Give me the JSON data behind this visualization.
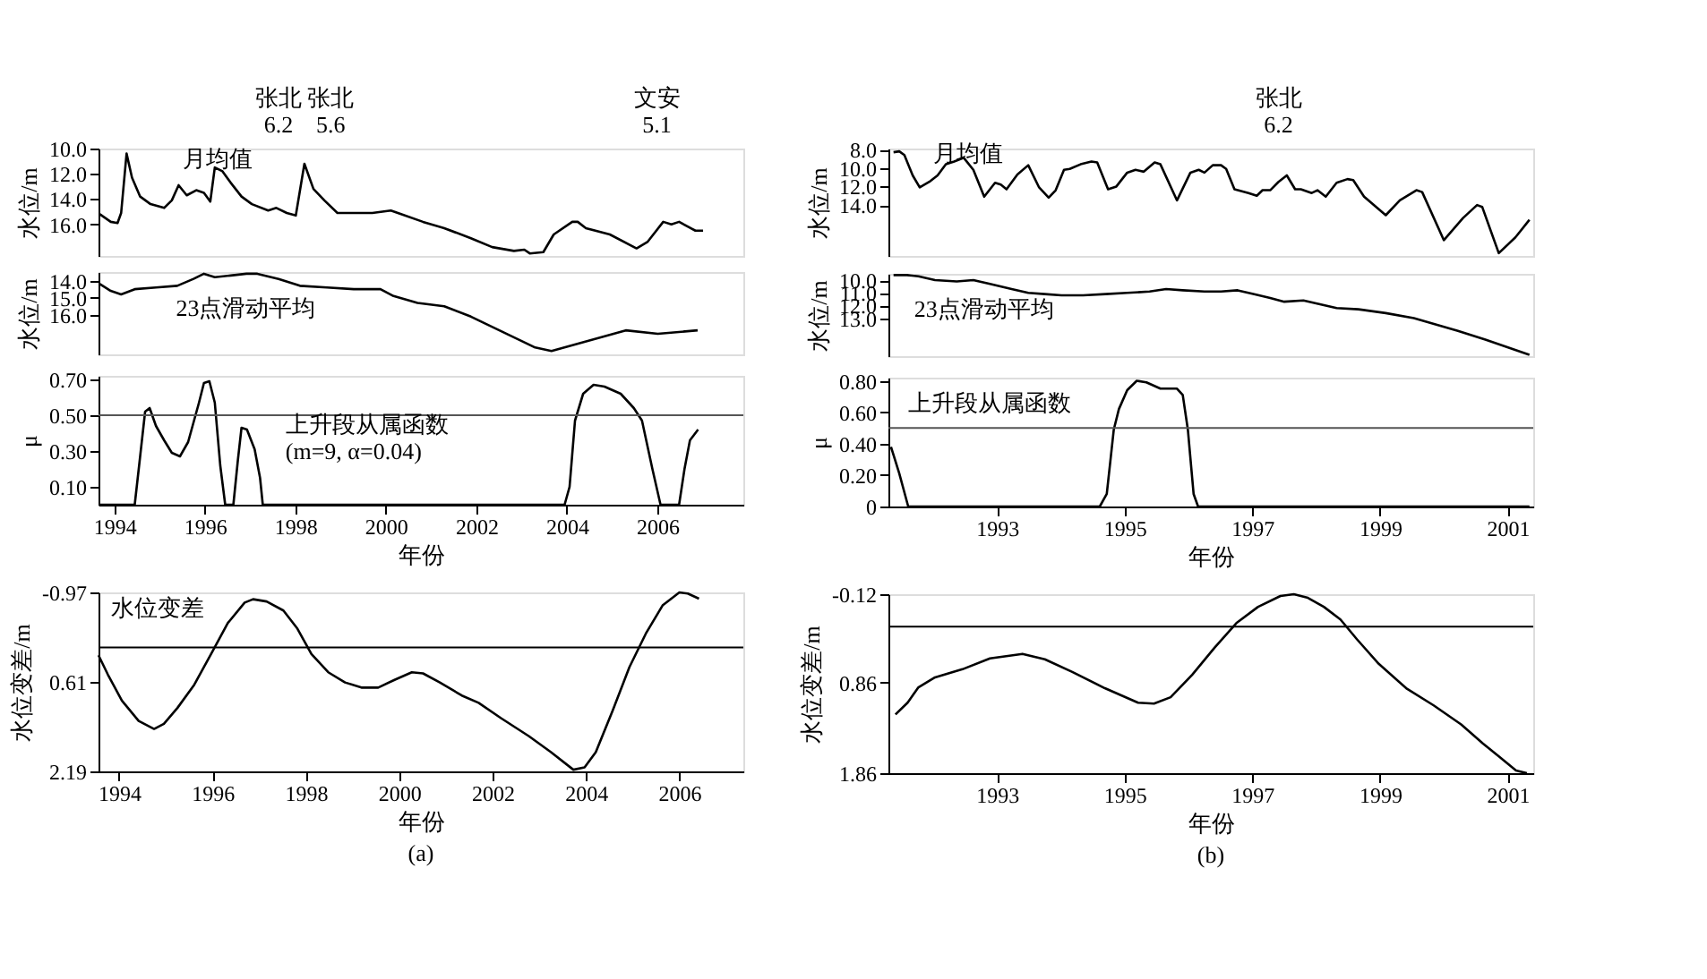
{
  "chart_data": [
    {
      "type": "line",
      "ylabel": "水位/m",
      "xlim": [
        1993.65,
        2007.9
      ],
      "ylim": [
        18.5,
        10
      ],
      "yticks": [
        {
          "value": 10,
          "label": "10.0"
        },
        {
          "value": 12,
          "label": "12.0"
        },
        {
          "value": 14,
          "label": "14.0"
        },
        {
          "value": 16,
          "label": "16.0"
        }
      ],
      "tick_labels": "y",
      "series": [
        {
          "color": "#000000",
          "x": [
            1993.68,
            1993.92,
            1994.07,
            1994.15,
            1994.27,
            1994.39,
            1994.57,
            1994.8,
            1995.1,
            1995.27,
            1995.42,
            1995.6,
            1995.81,
            1995.98,
            1996.12,
            1996.22,
            1996.39,
            1996.57,
            1996.81,
            1997.04,
            1997.4,
            1997.58,
            1997.81,
            1998.01,
            1998.2,
            1998.4,
            1998.64,
            1998.93,
            1999.17,
            1999.52,
            1999.7,
            2000.11,
            2000.35,
            2000.82,
            2001.29,
            2001.88,
            2002.35,
            2002.83,
            2003.06,
            2003.18,
            2003.48,
            2003.71,
            2004.12,
            2004.24,
            2004.42,
            2004.95,
            2005.54,
            2005.78,
            2006.13,
            2006.31,
            2006.48,
            2006.84,
            2007.01
          ],
          "values": [
            15.2,
            15.8,
            15.9,
            15.1,
            10.4,
            12.3,
            13.8,
            14.4,
            14.7,
            14.1,
            12.9,
            13.7,
            13.3,
            13.5,
            14.2,
            11.5,
            11.8,
            12.7,
            13.8,
            14.4,
            14.9,
            14.7,
            15.1,
            15.3,
            11.2,
            13.2,
            14.1,
            15.1,
            15.1,
            15.1,
            15.1,
            14.9,
            15.2,
            15.8,
            16.3,
            17.1,
            17.8,
            18.1,
            18.0,
            18.3,
            18.2,
            16.8,
            15.8,
            15.8,
            16.3,
            16.8,
            17.9,
            17.4,
            15.8,
            16.0,
            15.8,
            16.5,
            16.5
          ]
        }
      ],
      "annotations": [
        "月均值",
        "张北\n6.2",
        "张北\n5.6",
        "文安\n5.1"
      ]
    },
    {
      "type": "line",
      "ylabel": "水位/m",
      "xlim": [
        1993.65,
        2007.9
      ],
      "ylim": [
        18.3,
        13.5
      ],
      "yticks": [
        {
          "value": 14,
          "label": "14.0"
        },
        {
          "value": 15,
          "label": "15.0"
        },
        {
          "value": 16,
          "label": "16.0"
        }
      ],
      "tick_labels": "y",
      "series": [
        {
          "color": "#000000",
          "x": [
            1993.68,
            1993.92,
            1994.15,
            1994.45,
            1994.92,
            1995.39,
            1995.75,
            1995.98,
            1996.22,
            1996.57,
            1996.92,
            1997.16,
            1997.63,
            1998.1,
            1998.7,
            1999.29,
            1999.88,
            2000.17,
            2000.7,
            2001.29,
            2001.88,
            2002.59,
            2003.3,
            2003.66,
            2005.3,
            2006.01,
            2006.89
          ],
          "values": [
            14.2,
            14.6,
            14.8,
            14.5,
            14.4,
            14.3,
            13.9,
            13.6,
            13.8,
            13.7,
            13.6,
            13.6,
            13.9,
            14.3,
            14.4,
            14.5,
            14.5,
            14.9,
            15.3,
            15.5,
            16.1,
            17.0,
            17.9,
            18.1,
            16.9,
            17.1,
            16.9
          ]
        }
      ],
      "annotations": [
        "23点滑动平均"
      ]
    },
    {
      "type": "line",
      "ylabel": "μ",
      "xlabel": "年份",
      "xlim": [
        1993.65,
        2007.9
      ],
      "ylim": [
        0,
        0.72
      ],
      "xticks": [
        1994,
        1996,
        1998,
        2000,
        2002,
        2004,
        2006
      ],
      "yticks": [
        {
          "value": 0.1,
          "label": "0.10"
        },
        {
          "value": 0.3,
          "label": "0.30"
        },
        {
          "value": 0.5,
          "label": "0.50"
        },
        {
          "value": 0.7,
          "label": "0.70"
        }
      ],
      "series": [
        {
          "color": "#000000",
          "x": [
            1993.65,
            1994.45,
            1994.57,
            1994.68,
            1994.78,
            1994.92,
            1995.1,
            1995.27,
            1995.45,
            1995.63,
            1995.87,
            1995.98,
            1996.1,
            1996.22,
            1996.34,
            1996.45,
            1996.63,
            1996.73,
            1996.81,
            1996.93,
            1997.1,
            1997.22,
            1997.28,
            2003.95,
            2004.06,
            2004.18,
            2004.36,
            2004.59,
            2004.83,
            2005.19,
            2005.48,
            2005.66,
            2005.89,
            2006.07,
            2006.48,
            2006.6,
            2006.72,
            2006.9
          ],
          "values": [
            0,
            0,
            0.27,
            0.52,
            0.54,
            0.44,
            0.36,
            0.29,
            0.27,
            0.35,
            0.57,
            0.68,
            0.69,
            0.57,
            0.22,
            0,
            0,
            0.25,
            0.43,
            0.42,
            0.31,
            0.15,
            0,
            0,
            0.1,
            0.47,
            0.62,
            0.67,
            0.66,
            0.62,
            0.54,
            0.47,
            0.2,
            0,
            0,
            0.2,
            0.36,
            0.42
          ]
        }
      ],
      "ref_lines": [
        {
          "axis": "y",
          "value": 0.5,
          "color": "#555555"
        }
      ],
      "annotations": [
        "上升段从属函数\n(m=9, α=0.04)"
      ]
    },
    {
      "type": "line",
      "ylabel": "水位变差/m",
      "xlabel": "年份",
      "xlim": [
        1993.56,
        2007.37
      ],
      "ylim": [
        2.19,
        -0.97
      ],
      "xticks": [
        1994,
        1996,
        1998,
        2000,
        2002,
        2004,
        2006
      ],
      "yticks": [
        {
          "value": -0.97,
          "label": "-0.97"
        },
        {
          "value": 0.61,
          "label": "0.61"
        },
        {
          "value": 2.19,
          "label": "2.19"
        }
      ],
      "series": [
        {
          "color": "#000000",
          "x": [
            1993.56,
            1993.76,
            1994.06,
            1994.42,
            1994.75,
            1994.96,
            1995.25,
            1995.61,
            1995.97,
            1996.33,
            1996.69,
            1996.87,
            1997.16,
            1997.52,
            1997.82,
            1998.12,
            1998.48,
            1998.84,
            1999.19,
            1999.55,
            1999.91,
            2000.27,
            2000.51,
            2000.87,
            2001.34,
            2001.7,
            2002.18,
            2002.78,
            2003.25,
            2003.73,
            2003.97,
            2004.21,
            2004.57,
            2004.93,
            2005.28,
            2005.64,
            2006.0,
            2006.18,
            2006.42
          ],
          "values": [
            0.14,
            0.48,
            0.94,
            1.3,
            1.44,
            1.35,
            1.07,
            0.66,
            0.12,
            -0.43,
            -0.79,
            -0.85,
            -0.81,
            -0.65,
            -0.33,
            0.12,
            0.44,
            0.62,
            0.71,
            0.71,
            0.57,
            0.44,
            0.46,
            0.62,
            0.85,
            0.98,
            1.25,
            1.57,
            1.85,
            2.16,
            2.12,
            1.85,
            1.12,
            0.35,
            -0.24,
            -0.74,
            -0.97,
            -0.95,
            -0.86
          ]
        }
      ],
      "ref_lines": [
        {
          "axis": "y",
          "value": 0.0,
          "color": "#000000"
        }
      ],
      "annotations": [
        "水位变差",
        "(a)"
      ]
    },
    {
      "type": "line",
      "ylabel": "水位/m",
      "xlim": [
        1991.3,
        2001.4
      ],
      "ylim": [
        19.5,
        7.9
      ],
      "yticks": [
        {
          "value": 8,
          "label": "8.0"
        },
        {
          "value": 10,
          "label": "10.0"
        },
        {
          "value": 12,
          "label": "12.0"
        },
        {
          "value": 14,
          "label": "14.0"
        }
      ],
      "tick_labels": "y",
      "series": [
        {
          "color": "#000000",
          "x": [
            1991.38,
            1991.47,
            1991.55,
            1991.68,
            1991.79,
            1991.94,
            1992.07,
            1992.2,
            1992.33,
            1992.48,
            1992.63,
            1992.8,
            1992.97,
            1993.06,
            1993.15,
            1993.32,
            1993.49,
            1993.66,
            1993.81,
            1993.92,
            1994.05,
            1994.14,
            1994.31,
            1994.48,
            1994.57,
            1994.74,
            1994.87,
            1995.04,
            1995.17,
            1995.3,
            1995.47,
            1995.56,
            1995.82,
            1996.03,
            1996.16,
            1996.25,
            1996.38,
            1996.51,
            1996.59,
            1996.72,
            1996.94,
            1997.07,
            1997.16,
            1997.28,
            1997.41,
            1997.54,
            1997.67,
            1997.76,
            1997.93,
            1998.02,
            1998.15,
            1998.32,
            1998.49,
            1998.58,
            1998.75,
            1999.09,
            1999.31,
            1999.57,
            1999.66,
            2000.0,
            2000.3,
            2000.52,
            2000.6,
            2000.86,
            2001.12,
            2001.34
          ],
          "values": [
            8.3,
            8.2,
            8.6,
            10.8,
            12.1,
            11.5,
            10.8,
            9.6,
            9.3,
            8.9,
            10.2,
            13.1,
            11.6,
            11.8,
            12.3,
            10.7,
            9.7,
            12.1,
            13.2,
            12.4,
            10.2,
            10.1,
            9.6,
            9.3,
            9.4,
            12.3,
            12.0,
            10.5,
            10.2,
            10.4,
            9.4,
            9.6,
            13.5,
            10.5,
            10.2,
            10.5,
            9.7,
            9.7,
            10.1,
            12.3,
            12.7,
            13.0,
            12.4,
            12.4,
            11.5,
            10.8,
            12.3,
            12.3,
            12.7,
            12.4,
            13.1,
            11.6,
            11.2,
            11.3,
            13.1,
            15.1,
            13.5,
            12.4,
            12.6,
            17.8,
            15.4,
            14.0,
            14.2,
            19.2,
            17.5,
            15.6
          ]
        }
      ],
      "annotations": [
        "月均值",
        "张北\n6.2"
      ]
    },
    {
      "type": "line",
      "ylabel": "水位/m",
      "xlim": [
        1991.3,
        2001.4
      ],
      "ylim": [
        16,
        9.5
      ],
      "yticks": [
        {
          "value": 10,
          "label": "10.0"
        },
        {
          "value": 11,
          "label": "11.0"
        },
        {
          "value": 12,
          "label": "12.0"
        },
        {
          "value": 13,
          "label": "13.0"
        }
      ],
      "tick_labels": "y",
      "series": [
        {
          "color": "#000000",
          "x": [
            1991.38,
            1991.59,
            1991.77,
            1992.03,
            1992.37,
            1992.63,
            1992.89,
            1993.23,
            1993.49,
            1993.75,
            1994.01,
            1994.35,
            1994.7,
            1995.04,
            1995.39,
            1995.65,
            1995.91,
            1996.25,
            1996.51,
            1996.77,
            1997.03,
            1997.28,
            1997.5,
            1997.8,
            1998.06,
            1998.32,
            1998.66,
            1999.09,
            1999.53,
            2000.22,
            2000.65,
            2001.34
          ],
          "values": [
            9.6,
            9.6,
            9.7,
            10.0,
            10.1,
            10.0,
            10.3,
            10.7,
            11.0,
            11.1,
            11.2,
            11.2,
            11.1,
            11.0,
            10.9,
            10.7,
            10.8,
            10.9,
            10.9,
            10.8,
            11.1,
            11.4,
            11.7,
            11.6,
            11.9,
            12.2,
            12.3,
            12.6,
            13.0,
            14.0,
            14.7,
            15.9
          ]
        }
      ],
      "annotations": [
        "23点滑动平均"
      ]
    },
    {
      "type": "line",
      "ylabel": "μ",
      "xlabel": "年份",
      "xlim": [
        1991.3,
        2001.4
      ],
      "ylim": [
        0,
        0.82
      ],
      "xticks": [
        1993,
        1995,
        1997,
        1999,
        2001
      ],
      "yticks": [
        {
          "value": 0,
          "label": "0"
        },
        {
          "value": 0.2,
          "label": "0.20"
        },
        {
          "value": 0.4,
          "label": "0.40"
        },
        {
          "value": 0.6,
          "label": "0.60"
        },
        {
          "value": 0.8,
          "label": "0.80"
        }
      ],
      "series": [
        {
          "color": "#000000",
          "x": [
            1991.34,
            1991.47,
            1991.61,
            1994.61,
            1994.72,
            1994.83,
            1994.91,
            1995.04,
            1995.19,
            1995.34,
            1995.56,
            1995.82,
            1995.91,
            1995.99,
            1996.08,
            1996.15,
            2001.34
          ],
          "values": [
            0.38,
            0.21,
            0,
            0,
            0.08,
            0.49,
            0.62,
            0.74,
            0.8,
            0.79,
            0.75,
            0.75,
            0.71,
            0.49,
            0.08,
            0,
            0
          ]
        }
      ],
      "ref_lines": [
        {
          "axis": "y",
          "value": 0.5,
          "color": "#555555"
        }
      ],
      "annotations": [
        "上升段从属函数"
      ]
    },
    {
      "type": "line",
      "ylabel": "水位变差/m",
      "xlabel": "年份",
      "xlim": [
        1991.3,
        2001.4
      ],
      "ylim": [
        1.86,
        -0.12
      ],
      "xticks": [
        1993,
        1995,
        1997,
        1999,
        2001
      ],
      "yticks": [
        {
          "value": -0.12,
          "label": "-0.12"
        },
        {
          "value": 0.86,
          "label": "0.86"
        },
        {
          "value": 1.86,
          "label": "1.86"
        }
      ],
      "series": [
        {
          "color": "#000000",
          "x": [
            1991.41,
            1991.6,
            1991.77,
            1992.03,
            1992.46,
            1992.89,
            1993.4,
            1993.75,
            1994.18,
            1994.69,
            1995.21,
            1995.46,
            1995.72,
            1996.06,
            1996.41,
            1996.75,
            1997.09,
            1997.44,
            1997.65,
            1997.87,
            1998.12,
            1998.38,
            1998.64,
            1998.98,
            1999.41,
            1999.84,
            2000.27,
            2000.61,
            2000.87,
            2001.13,
            2001.3
          ],
          "values": [
            1.21,
            1.08,
            0.91,
            0.8,
            0.71,
            0.59,
            0.54,
            0.6,
            0.74,
            0.92,
            1.08,
            1.09,
            1.02,
            0.77,
            0.47,
            0.2,
            0.02,
            -0.1,
            -0.12,
            -0.08,
            0.02,
            0.16,
            0.38,
            0.65,
            0.92,
            1.11,
            1.32,
            1.53,
            1.68,
            1.83,
            1.86
          ]
        }
      ],
      "ref_lines": [
        {
          "axis": "y",
          "value": 0.24,
          "color": "#000000"
        }
      ],
      "annotations": [
        "(b)"
      ]
    }
  ]
}
